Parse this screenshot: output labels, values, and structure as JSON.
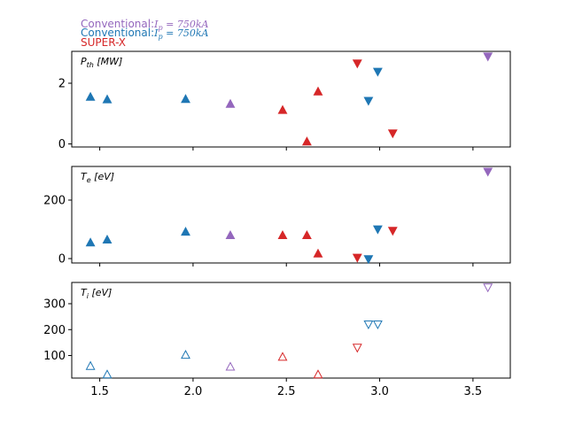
{
  "chart_data": {
    "type": "scatter",
    "legend": [
      {
        "prefix": "Conventional:",
        "formula": "I_p = 750kA",
        "color": "#9467bd"
      },
      {
        "prefix": "Conventional:",
        "formula": "I_p = 750kA",
        "color": "#1f77b4"
      },
      {
        "prefix": "SUPER-X",
        "formula": "",
        "color": "#d62728"
      }
    ],
    "legend_placement": "top-left, above plots",
    "xlim": [
      1.35,
      3.7
    ],
    "xticks": [
      1.5,
      2.0,
      2.5,
      3.0,
      3.5
    ],
    "xtick_labels": [
      "1.5",
      "2.0",
      "2.5",
      "3.0",
      "3.5"
    ],
    "panels": [
      {
        "label": "P_th [MW]",
        "ylim": [
          -0.1,
          3.05
        ],
        "yticks": [
          0,
          2
        ],
        "ytick_labels": [
          "0",
          "2"
        ],
        "filled": true,
        "points": [
          {
            "x": 1.45,
            "y": 1.55,
            "marker": "up",
            "color": "#1f77b4"
          },
          {
            "x": 1.54,
            "y": 1.47,
            "marker": "up",
            "color": "#1f77b4"
          },
          {
            "x": 1.96,
            "y": 1.48,
            "marker": "up",
            "color": "#1f77b4"
          },
          {
            "x": 2.2,
            "y": 1.32,
            "marker": "up",
            "color": "#9467bd"
          },
          {
            "x": 2.48,
            "y": 1.12,
            "marker": "up",
            "color": "#d62728"
          },
          {
            "x": 2.61,
            "y": 0.08,
            "marker": "up",
            "color": "#d62728"
          },
          {
            "x": 2.67,
            "y": 1.73,
            "marker": "up",
            "color": "#d62728"
          },
          {
            "x": 2.88,
            "y": 2.65,
            "marker": "down",
            "color": "#d62728"
          },
          {
            "x": 2.94,
            "y": 1.42,
            "marker": "down",
            "color": "#1f77b4"
          },
          {
            "x": 2.99,
            "y": 2.38,
            "marker": "down",
            "color": "#1f77b4"
          },
          {
            "x": 3.07,
            "y": 0.35,
            "marker": "down",
            "color": "#d62728"
          },
          {
            "x": 3.58,
            "y": 2.88,
            "marker": "down",
            "color": "#9467bd"
          }
        ]
      },
      {
        "label": "T_e [eV]",
        "ylim": [
          -15,
          315
        ],
        "yticks": [
          0,
          200
        ],
        "ytick_labels": [
          "0",
          "200"
        ],
        "filled": true,
        "points": [
          {
            "x": 1.45,
            "y": 55,
            "marker": "up",
            "color": "#1f77b4"
          },
          {
            "x": 1.54,
            "y": 65,
            "marker": "up",
            "color": "#1f77b4"
          },
          {
            "x": 1.96,
            "y": 92,
            "marker": "up",
            "color": "#1f77b4"
          },
          {
            "x": 2.2,
            "y": 80,
            "marker": "up",
            "color": "#9467bd"
          },
          {
            "x": 2.48,
            "y": 80,
            "marker": "up",
            "color": "#d62728"
          },
          {
            "x": 2.61,
            "y": 80,
            "marker": "up",
            "color": "#d62728"
          },
          {
            "x": 2.67,
            "y": 17,
            "marker": "up",
            "color": "#d62728"
          },
          {
            "x": 2.88,
            "y": 3,
            "marker": "down",
            "color": "#d62728"
          },
          {
            "x": 2.94,
            "y": -2,
            "marker": "down",
            "color": "#1f77b4"
          },
          {
            "x": 2.99,
            "y": 100,
            "marker": "down",
            "color": "#1f77b4"
          },
          {
            "x": 3.07,
            "y": 95,
            "marker": "down",
            "color": "#d62728"
          },
          {
            "x": 3.58,
            "y": 297,
            "marker": "down",
            "color": "#9467bd"
          }
        ]
      },
      {
        "label": "T_i [eV]",
        "ylim": [
          13,
          382
        ],
        "yticks": [
          100,
          200,
          300
        ],
        "ytick_labels": [
          "100",
          "200",
          "300"
        ],
        "filled": false,
        "points": [
          {
            "x": 1.45,
            "y": 60,
            "marker": "up",
            "color": "#1f77b4"
          },
          {
            "x": 1.54,
            "y": 27,
            "marker": "up",
            "color": "#1f77b4"
          },
          {
            "x": 1.96,
            "y": 103,
            "marker": "up",
            "color": "#1f77b4"
          },
          {
            "x": 2.2,
            "y": 57,
            "marker": "up",
            "color": "#9467bd"
          },
          {
            "x": 2.48,
            "y": 95,
            "marker": "up",
            "color": "#d62728"
          },
          {
            "x": 2.67,
            "y": 27,
            "marker": "up",
            "color": "#d62728"
          },
          {
            "x": 2.88,
            "y": 130,
            "marker": "down",
            "color": "#d62728"
          },
          {
            "x": 2.94,
            "y": 220,
            "marker": "down",
            "color": "#1f77b4"
          },
          {
            "x": 2.99,
            "y": 220,
            "marker": "down",
            "color": "#1f77b4"
          },
          {
            "x": 3.58,
            "y": 363,
            "marker": "down",
            "color": "#9467bd"
          }
        ]
      }
    ]
  }
}
